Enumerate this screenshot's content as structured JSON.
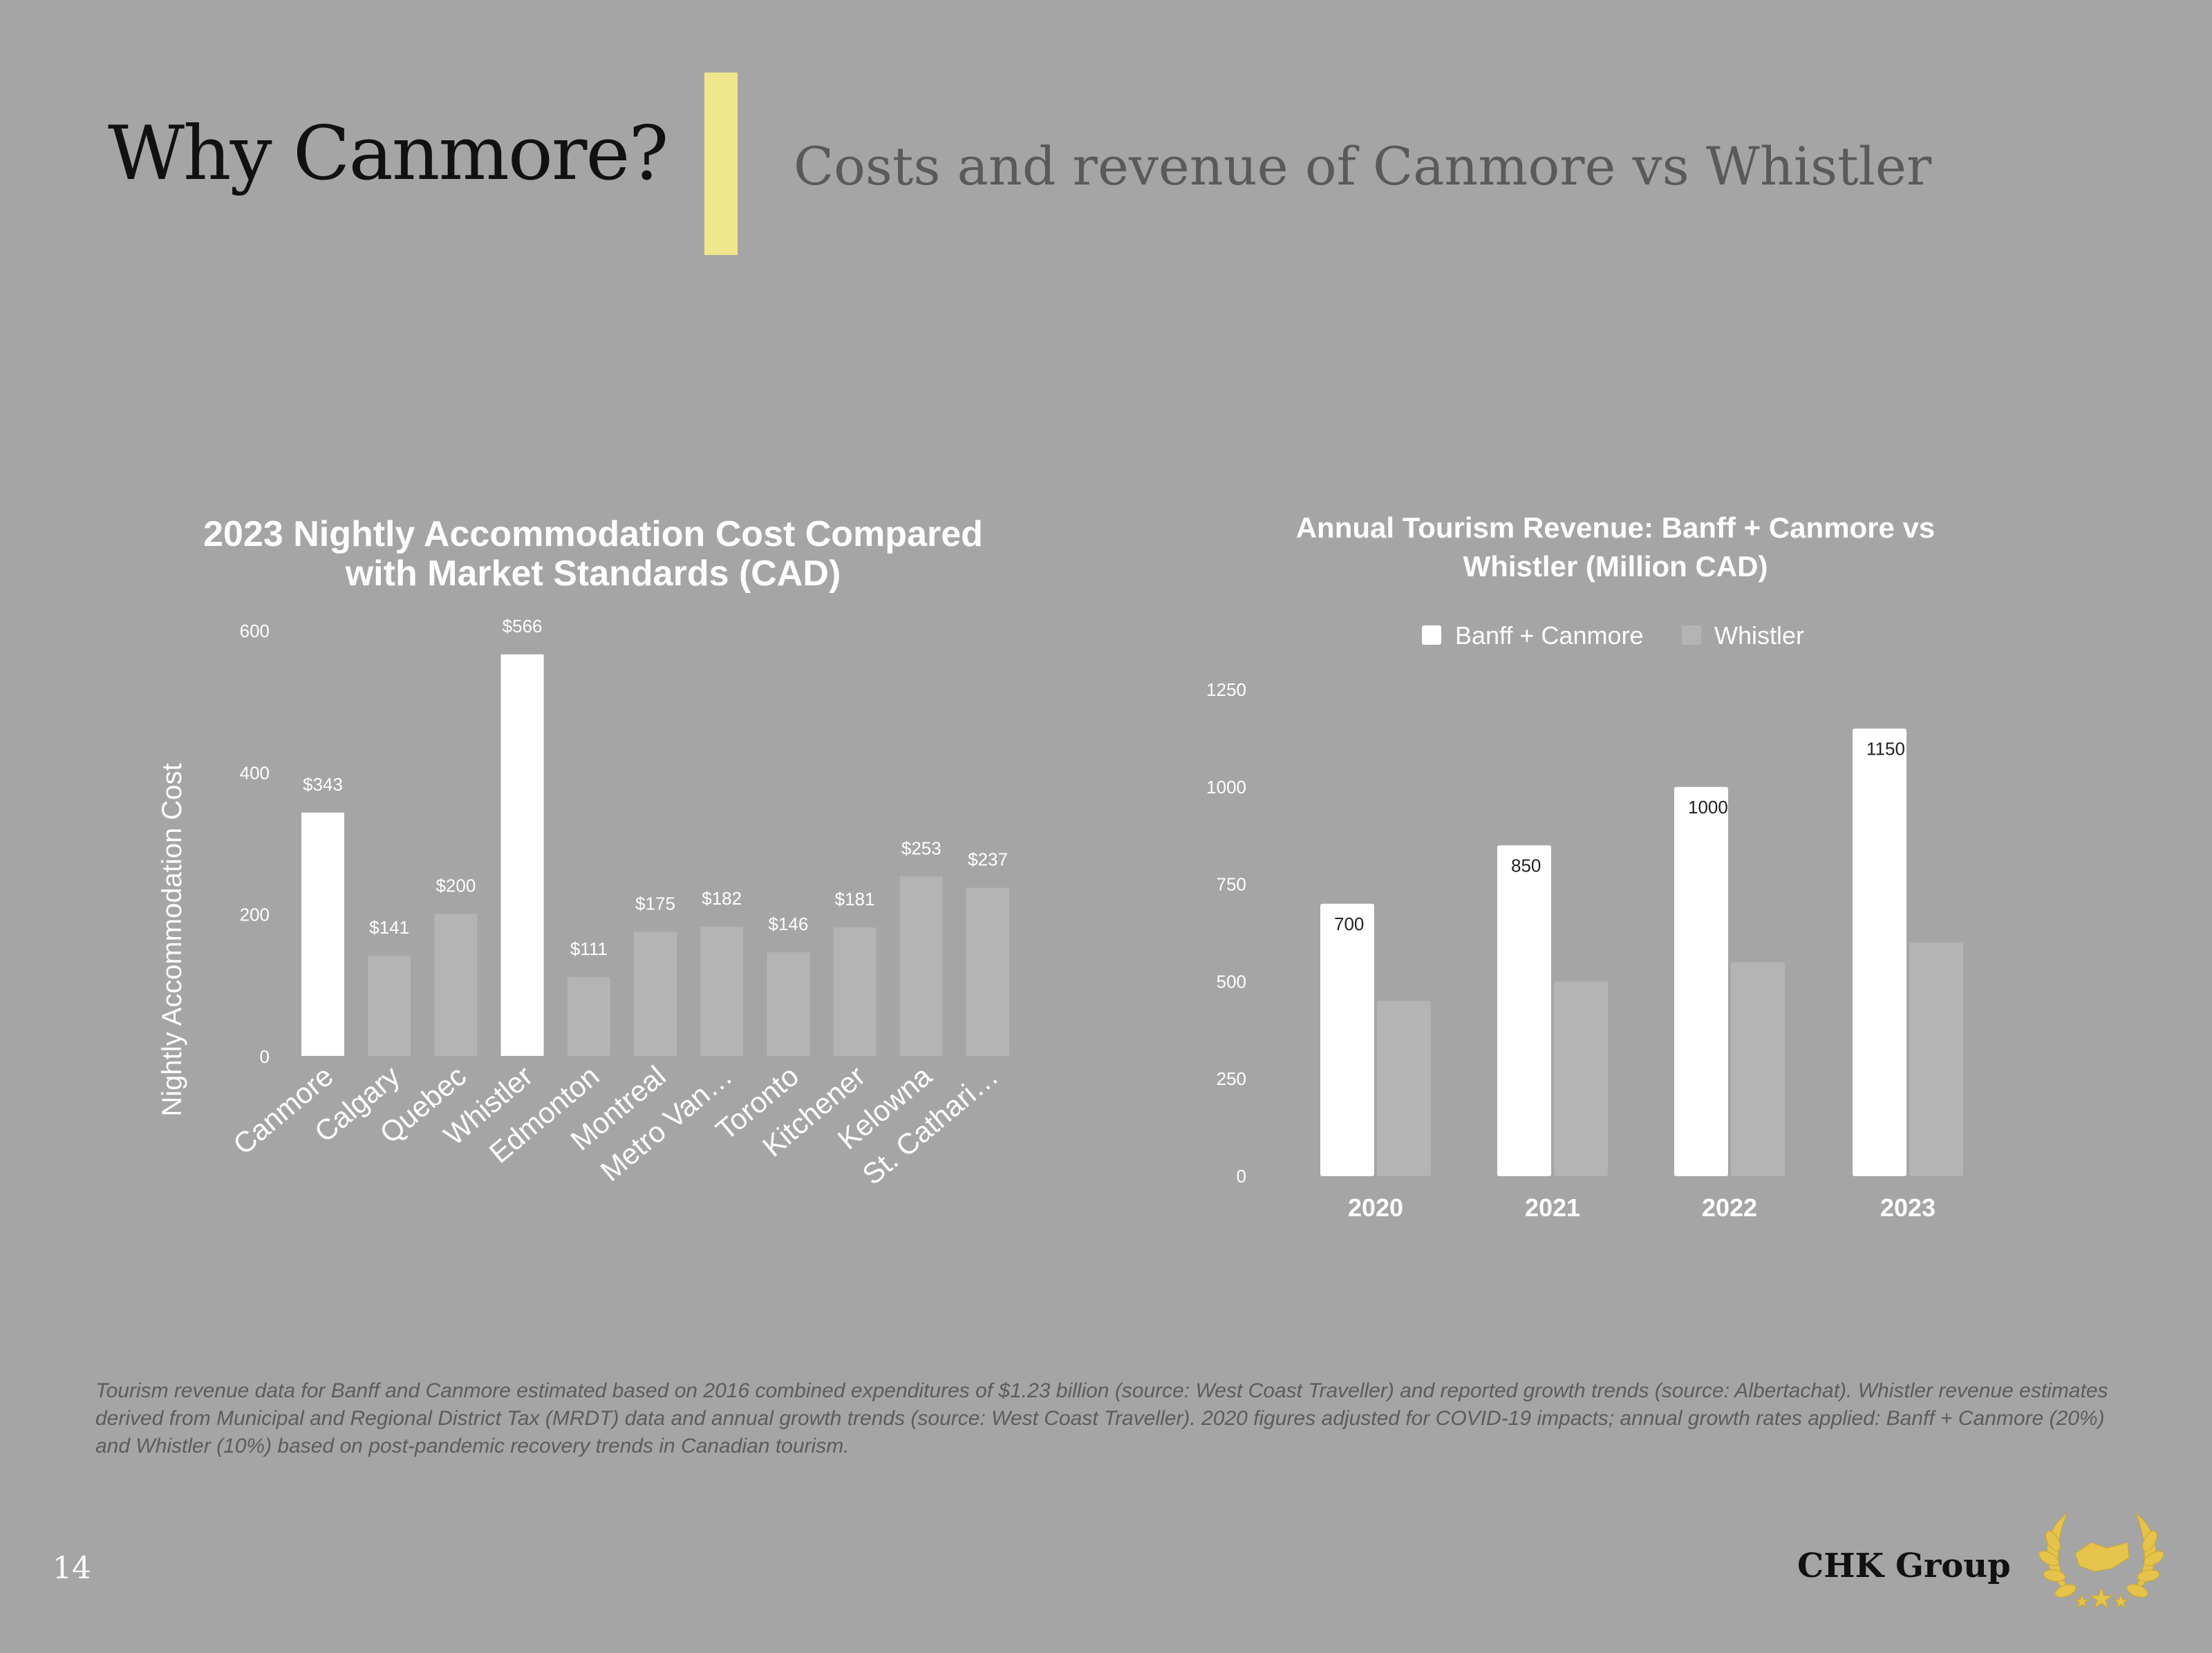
{
  "header": {
    "title": "Why Canmore?",
    "subtitle": "Costs and revenue of Canmore vs Whistler"
  },
  "footnote": "Tourism revenue data for Banff and Canmore estimated based on 2016 combined expenditures of $1.23 billion (source: West Coast Traveller) and reported growth trends (source: Albertachat). Whistler revenue estimates derived from Municipal and Regional District Tax (MRDT) data and annual growth trends (source: West Coast Traveller). 2020 figures adjusted for COVID-19 impacts; annual growth rates applied: Banff + Canmore (20%) and Whistler (10%) based on post-pandemic recovery trends in Canadian tourism.",
  "footer": {
    "page_number": "14",
    "brand": "CHK Group",
    "logo_icon": "laurel-handshake-icon"
  },
  "colors": {
    "background": "#a5a5a5",
    "accent": "#f0e68c",
    "highlight_bar": "#ffffff",
    "muted_bar": "#b4b4b4"
  },
  "chart_data": [
    {
      "type": "bar",
      "title": "2023 Nightly Accommodation Cost Compared with Market Standards (CAD)",
      "title_lines": [
        "2023 Nightly Accommodation Cost Compared",
        "with Market Standards (CAD)"
      ],
      "xlabel": "",
      "ylabel": "Nightly Accommodation Cost",
      "categories": [
        "Canmore",
        "Calgary",
        "Quebec",
        "Whistler",
        "Edmonton",
        "Montreal",
        "Metro Van…",
        "Toronto",
        "Kitchener",
        "Kelowna",
        "St. Cathari…"
      ],
      "values": [
        343,
        141,
        200,
        566,
        111,
        175,
        182,
        146,
        181,
        253,
        237
      ],
      "data_labels": [
        "$343",
        "$141",
        "$200",
        "$566",
        "$111",
        "$175",
        "$182",
        "$146",
        "$181",
        "$253",
        "$237"
      ],
      "highlighted": [
        "Canmore",
        "Whistler"
      ],
      "ylim": [
        0,
        600
      ],
      "yticks": [
        0,
        200,
        400,
        600
      ],
      "grid": false,
      "legend": "none"
    },
    {
      "type": "bar",
      "title": "Annual Tourism Revenue: Banff + Canmore vs Whistler (Million CAD)",
      "title_lines": [
        "Annual Tourism Revenue: Banff + Canmore vs",
        "Whistler (Million CAD)"
      ],
      "xlabel": "",
      "ylabel": "",
      "categories": [
        "2020",
        "2021",
        "2022",
        "2023"
      ],
      "series": [
        {
          "name": "Banff + Canmore",
          "values": [
            700,
            850,
            1000,
            1150
          ],
          "data_labels": [
            "700",
            "850",
            "1000",
            "1150"
          ],
          "color": "#ffffff"
        },
        {
          "name": "Whistler",
          "values": [
            450,
            500,
            550,
            600
          ],
          "color": "#b4b4b4"
        }
      ],
      "ylim": [
        0,
        1250
      ],
      "yticks": [
        0,
        250,
        500,
        750,
        1000,
        1250
      ],
      "grid": false,
      "legend": "top-center"
    }
  ]
}
